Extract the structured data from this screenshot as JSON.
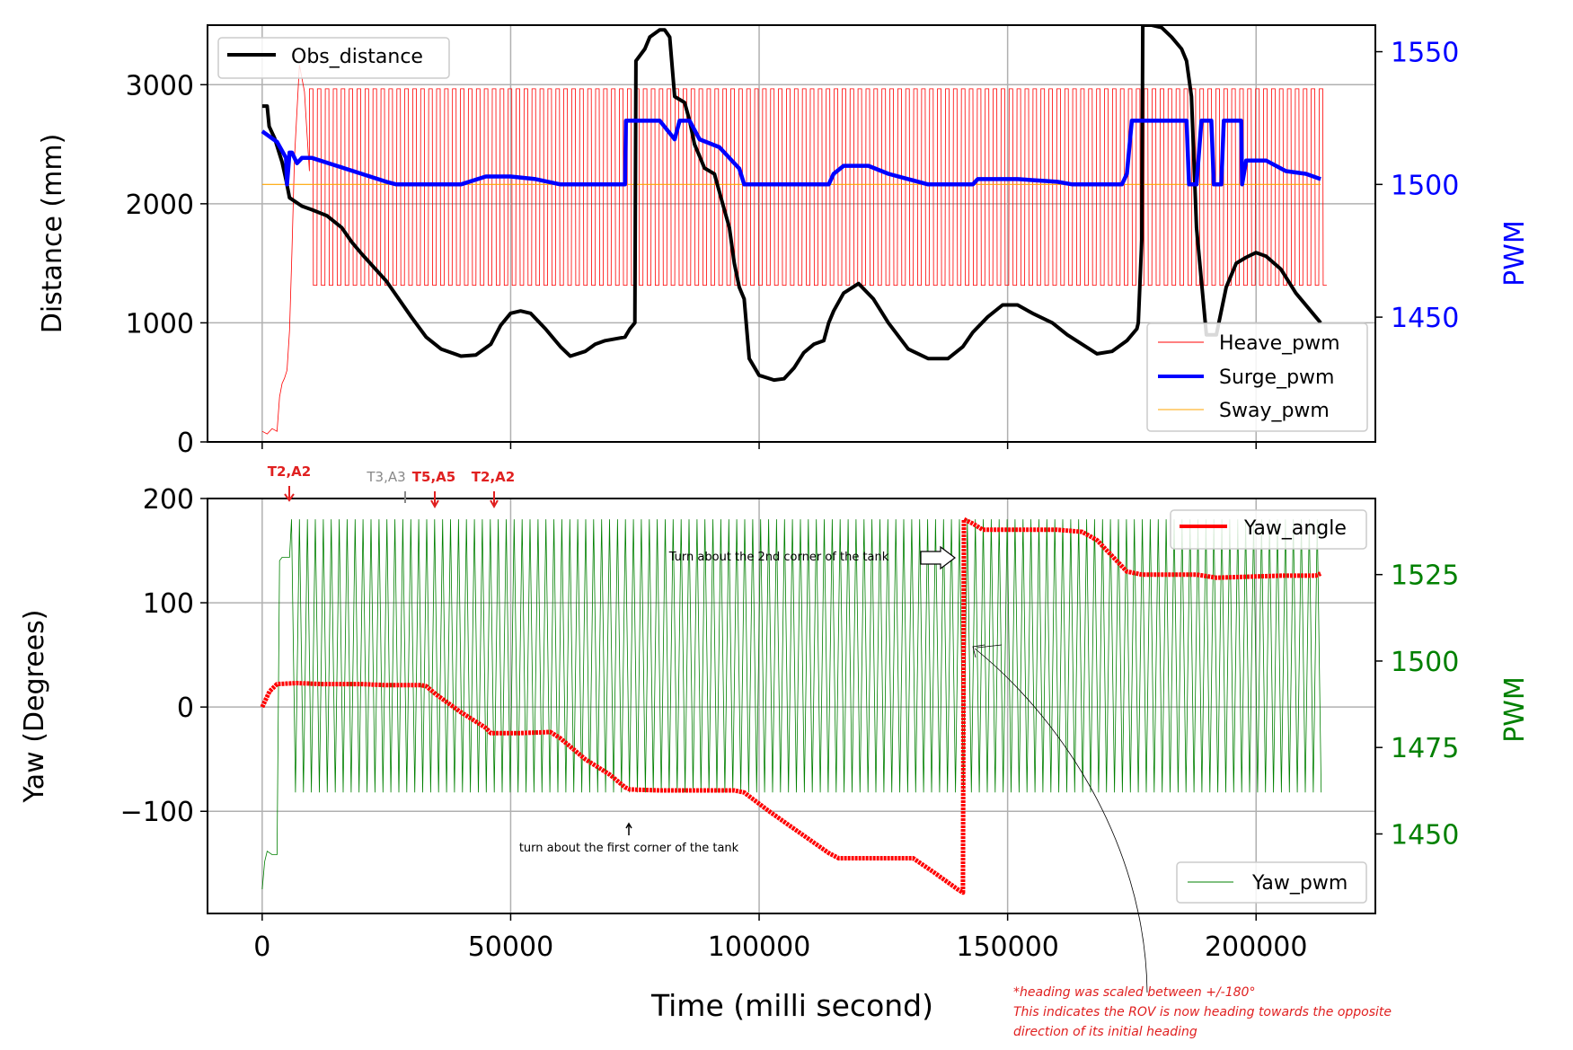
{
  "chart_data": [
    {
      "type": "line",
      "position": "top",
      "xlim": [
        -11000,
        224000
      ],
      "x_ticks": [
        0,
        50000,
        100000,
        150000,
        200000
      ],
      "ylabel": "Distance (mm)",
      "ylim": [
        0,
        3500
      ],
      "y_ticks": [
        0,
        1000,
        2000,
        3000
      ],
      "y2label": "PWM",
      "y2lim": [
        1403,
        1560
      ],
      "y2_ticks": [
        1450,
        1500,
        1550
      ],
      "y2_color": "#0000ff",
      "grid": true,
      "legends": [
        {
          "location": "top-left",
          "entries": [
            "Obs_distance"
          ]
        },
        {
          "location": "bottom-right",
          "entries": [
            "Heave_pwm",
            "Surge_pwm",
            "Sway_pwm"
          ]
        }
      ],
      "series": [
        {
          "name": "Obs_distance",
          "axis": "left",
          "color": "#000000",
          "points": [
            [
              0,
              2820
            ],
            [
              1000,
              2820
            ],
            [
              1400,
              2650
            ],
            [
              2500,
              2550
            ],
            [
              4000,
              2350
            ],
            [
              4800,
              2200
            ],
            [
              5500,
              2050
            ],
            [
              8000,
              1980
            ],
            [
              10000,
              1950
            ],
            [
              13000,
              1900
            ],
            [
              16000,
              1800
            ],
            [
              18000,
              1680
            ],
            [
              20000,
              1580
            ],
            [
              25000,
              1350
            ],
            [
              30000,
              1050
            ],
            [
              33000,
              880
            ],
            [
              36000,
              780
            ],
            [
              40000,
              720
            ],
            [
              43000,
              730
            ],
            [
              46000,
              820
            ],
            [
              48000,
              980
            ],
            [
              50000,
              1080
            ],
            [
              52000,
              1100
            ],
            [
              54000,
              1080
            ],
            [
              57000,
              950
            ],
            [
              60000,
              800
            ],
            [
              62000,
              720
            ],
            [
              65000,
              760
            ],
            [
              67000,
              820
            ],
            [
              69000,
              850
            ],
            [
              73000,
              880
            ],
            [
              74000,
              950
            ],
            [
              75000,
              1000
            ],
            [
              75200,
              3200
            ],
            [
              77000,
              3300
            ],
            [
              78000,
              3400
            ],
            [
              80000,
              3460
            ],
            [
              81000,
              3460
            ],
            [
              82000,
              3400
            ],
            [
              83000,
              2900
            ],
            [
              85000,
              2850
            ],
            [
              86000,
              2700
            ],
            [
              87000,
              2500
            ],
            [
              88000,
              2400
            ],
            [
              89000,
              2300
            ],
            [
              91000,
              2250
            ],
            [
              92000,
              2100
            ],
            [
              93000,
              1950
            ],
            [
              94000,
              1800
            ],
            [
              95000,
              1500
            ],
            [
              96000,
              1300
            ],
            [
              97000,
              1200
            ],
            [
              98000,
              700
            ],
            [
              100000,
              560
            ],
            [
              103000,
              520
            ],
            [
              105000,
              530
            ],
            [
              107000,
              620
            ],
            [
              109000,
              750
            ],
            [
              111000,
              820
            ],
            [
              113000,
              850
            ],
            [
              114000,
              1000
            ],
            [
              115000,
              1100
            ],
            [
              117000,
              1250
            ],
            [
              120000,
              1330
            ],
            [
              123000,
              1200
            ],
            [
              126000,
              1000
            ],
            [
              130000,
              780
            ],
            [
              134000,
              700
            ],
            [
              138000,
              700
            ],
            [
              141000,
              800
            ],
            [
              143000,
              920
            ],
            [
              146000,
              1050
            ],
            [
              149000,
              1150
            ],
            [
              152000,
              1150
            ],
            [
              155000,
              1080
            ],
            [
              159000,
              1000
            ],
            [
              162000,
              900
            ],
            [
              165000,
              820
            ],
            [
              168000,
              740
            ],
            [
              171000,
              760
            ],
            [
              174000,
              850
            ],
            [
              176000,
              950
            ],
            [
              176300,
              1000
            ],
            [
              177000,
              1700
            ],
            [
              177200,
              3500
            ],
            [
              179000,
              3500
            ],
            [
              181000,
              3480
            ],
            [
              183000,
              3400
            ],
            [
              185000,
              3300
            ],
            [
              186000,
              3200
            ],
            [
              187000,
              2900
            ],
            [
              188000,
              1800
            ],
            [
              190000,
              900
            ],
            [
              192000,
              900
            ],
            [
              194000,
              1300
            ],
            [
              196000,
              1500
            ],
            [
              198000,
              1550
            ],
            [
              200000,
              1590
            ],
            [
              202000,
              1560
            ],
            [
              205000,
              1450
            ],
            [
              208000,
              1250
            ],
            [
              212000,
              1050
            ],
            [
              213000,
              1000
            ]
          ]
        },
        {
          "name": "Heave_pwm",
          "axis": "right",
          "color": "#ff0000",
          "style": "square oscillation between low and high levels",
          "period_ms": 1600,
          "startup": [
            [
              0,
              1407
            ],
            [
              1000,
              1406
            ],
            [
              2000,
              1408
            ],
            [
              3000,
              1407
            ],
            [
              3500,
              1420
            ],
            [
              4000,
              1425
            ],
            [
              4500,
              1427
            ],
            [
              5000,
              1430
            ],
            [
              5500,
              1445
            ],
            [
              6000,
              1475
            ],
            [
              6500,
              1510
            ],
            [
              7500,
              1545
            ],
            [
              8500,
              1535
            ],
            [
              9000,
              1520
            ],
            [
              9500,
              1505
            ]
          ],
          "oscillation_start_ms": 9500,
          "oscillation_end_ms": 213000,
          "low": 1462,
          "high": 1536
        },
        {
          "name": "Surge_pwm",
          "axis": "right",
          "color": "#0000ff",
          "points": [
            [
              0,
              1520
            ],
            [
              3000,
              1516
            ],
            [
              4800,
              1510
            ],
            [
              5000,
              1500
            ],
            [
              5500,
              1512
            ],
            [
              6000,
              1512
            ],
            [
              7000,
              1508
            ],
            [
              8000,
              1510
            ],
            [
              10000,
              1510
            ],
            [
              15000,
              1507
            ],
            [
              20000,
              1504
            ],
            [
              25000,
              1501
            ],
            [
              27000,
              1500
            ],
            [
              40000,
              1500
            ],
            [
              45000,
              1503
            ],
            [
              50000,
              1503
            ],
            [
              55000,
              1502
            ],
            [
              60000,
              1500
            ],
            [
              73000,
              1500
            ],
            [
              73200,
              1524
            ],
            [
              80000,
              1524
            ],
            [
              83000,
              1517
            ],
            [
              84000,
              1524
            ],
            [
              86000,
              1524
            ],
            [
              88000,
              1517
            ],
            [
              92000,
              1514
            ],
            [
              96000,
              1506
            ],
            [
              97000,
              1500
            ],
            [
              114000,
              1500
            ],
            [
              115000,
              1504
            ],
            [
              117000,
              1507
            ],
            [
              122000,
              1507
            ],
            [
              126000,
              1504
            ],
            [
              130000,
              1502
            ],
            [
              134000,
              1500
            ],
            [
              143000,
              1500
            ],
            [
              144000,
              1502
            ],
            [
              152000,
              1502
            ],
            [
              160000,
              1501
            ],
            [
              163000,
              1500
            ],
            [
              173000,
              1500
            ],
            [
              174000,
              1504
            ],
            [
              175000,
              1524
            ],
            [
              186000,
              1524
            ],
            [
              186500,
              1500
            ],
            [
              188000,
              1500
            ],
            [
              189000,
              1524
            ],
            [
              191000,
              1524
            ],
            [
              191500,
              1500
            ],
            [
              193000,
              1500
            ],
            [
              193500,
              1524
            ],
            [
              197000,
              1524
            ],
            [
              197200,
              1500
            ],
            [
              198000,
              1509
            ],
            [
              202000,
              1509
            ],
            [
              206000,
              1505
            ],
            [
              210000,
              1504
            ],
            [
              213000,
              1502
            ]
          ]
        },
        {
          "name": "Sway_pwm",
          "axis": "right",
          "color": "#ffa500",
          "points": [
            [
              0,
              1500
            ],
            [
              213000,
              1500
            ]
          ]
        }
      ]
    },
    {
      "type": "line",
      "position": "bottom",
      "xlabel": "Time (milli second)",
      "xlim": [
        -11000,
        224000
      ],
      "x_ticks": [
        0,
        50000,
        100000,
        150000,
        200000
      ],
      "ylabel": "Yaw (Degrees)",
      "ylim": [
        -198,
        200
      ],
      "y_ticks": [
        -100,
        0,
        100,
        200
      ],
      "y2label": "PWM",
      "y2lim": [
        1427,
        1547
      ],
      "y2_ticks": [
        1450,
        1475,
        1500,
        1525
      ],
      "y2_color": "#008000",
      "grid": true,
      "legends": [
        {
          "location": "top-right",
          "entries": [
            "Yaw_angle"
          ]
        },
        {
          "location": "bottom-right",
          "entries": [
            "Yaw_pwm"
          ]
        }
      ],
      "series": [
        {
          "name": "Yaw_angle",
          "axis": "left",
          "color": "#ff0000",
          "points": [
            [
              0,
              0
            ],
            [
              1500,
              15
            ],
            [
              3000,
              22
            ],
            [
              7000,
              23
            ],
            [
              12000,
              22
            ],
            [
              20000,
              22
            ],
            [
              25000,
              21
            ],
            [
              32000,
              21
            ],
            [
              33000,
              20
            ],
            [
              35000,
              12
            ],
            [
              40000,
              -5
            ],
            [
              45000,
              -20
            ],
            [
              46000,
              -25
            ],
            [
              52000,
              -25
            ],
            [
              58000,
              -24
            ],
            [
              60000,
              -30
            ],
            [
              65000,
              -50
            ],
            [
              70000,
              -65
            ],
            [
              73000,
              -77
            ],
            [
              74000,
              -79
            ],
            [
              80000,
              -80
            ],
            [
              95000,
              -80
            ],
            [
              97000,
              -82
            ],
            [
              102000,
              -100
            ],
            [
              108000,
              -120
            ],
            [
              114000,
              -140
            ],
            [
              116000,
              -145
            ],
            [
              128000,
              -145
            ],
            [
              131000,
              -145
            ],
            [
              135000,
              -158
            ],
            [
              140000,
              -175
            ],
            [
              141000,
              -178
            ],
            [
              141200,
              180
            ],
            [
              143000,
              176
            ],
            [
              145000,
              170
            ],
            [
              160000,
              170
            ],
            [
              165000,
              168
            ],
            [
              168000,
              160
            ],
            [
              172000,
              140
            ],
            [
              174000,
              130
            ],
            [
              177000,
              127
            ],
            [
              188000,
              127
            ],
            [
              192000,
              124
            ],
            [
              198000,
              125
            ],
            [
              205000,
              126
            ],
            [
              212000,
              126
            ],
            [
              213000,
              128
            ]
          ]
        },
        {
          "name": "Yaw_pwm",
          "axis": "right",
          "color": "#008000",
          "style": "oscillation between low and high levels",
          "period_ms": 1600,
          "startup": [
            [
              0,
              1434
            ],
            [
              500,
              1442
            ],
            [
              1000,
              1445
            ],
            [
              2000,
              1444
            ],
            [
              3000,
              1444
            ],
            [
              3500,
              1529
            ],
            [
              4000,
              1530
            ],
            [
              5500,
              1530
            ]
          ],
          "oscillation_start_ms": 5500,
          "oscillation_end_ms": 213000,
          "low": 1462,
          "high": 1541
        }
      ]
    }
  ],
  "annotations": {
    "m1": "T2,A2",
    "m2": "T3,A3",
    "m3": "T5,A5",
    "m4": "T2,A2",
    "corner2": "Turn about the 2nd corner of the tank",
    "corner1": "turn about the first corner of the tank",
    "note1": "*heading was scaled between +/-180°",
    "note2": "This indicates the ROV is now heading towards the opposite",
    "note3": "direction of its initial heading"
  }
}
